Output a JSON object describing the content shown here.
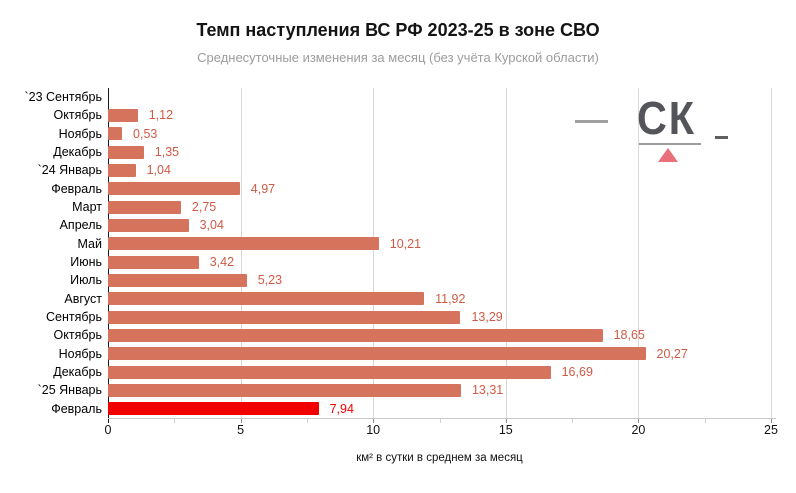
{
  "chart_data": {
    "type": "bar",
    "orientation": "horizontal",
    "title": "Темп наступления ВС РФ 2023-25 в зоне СВО",
    "subtitle": "Среднесуточные изменения за месяц (без учёта Курской области)",
    "xlabel": "км² в сутки в среднем за месяц",
    "categories": [
      "`23 Сентябрь",
      "Октябрь",
      "Ноябрь",
      "Декабрь",
      "`24 Январь",
      "Февраль",
      "Март",
      "Апрель",
      "Май",
      "Июнь",
      "Июль",
      "Август",
      "Сентябрь",
      "Октябрь",
      "Ноябрь",
      "Декабрь",
      "`25 Январь",
      "Февраль"
    ],
    "values": [
      null,
      1.12,
      0.53,
      1.35,
      1.04,
      4.97,
      2.75,
      3.04,
      10.21,
      3.42,
      5.23,
      11.92,
      13.29,
      18.65,
      20.27,
      16.69,
      13.31,
      7.94
    ],
    "value_labels": [
      "",
      "1,12",
      "0,53",
      "1,35",
      "1,04",
      "4,97",
      "2,75",
      "3,04",
      "10,21",
      "3,42",
      "5,23",
      "11,92",
      "13,29",
      "18,65",
      "20,27",
      "16,69",
      "13,31",
      "7,94"
    ],
    "xlim": [
      0,
      25
    ],
    "xticks": [
      0,
      5,
      10,
      15,
      20,
      25
    ],
    "minor_tick_step": 2.5,
    "grid": true,
    "legend": "none",
    "bar_color": "#d6735c",
    "value_label_color": "#d05a45",
    "highlight_index": 17,
    "highlight_color": "#f20000"
  },
  "logo": {
    "text": "СК",
    "text_color": "#54555b",
    "underline_color": "#9c9c9c",
    "accent_color": "#e9707b",
    "dash_left_color": "#8f8f8f",
    "dash_right_color": "#606060"
  }
}
